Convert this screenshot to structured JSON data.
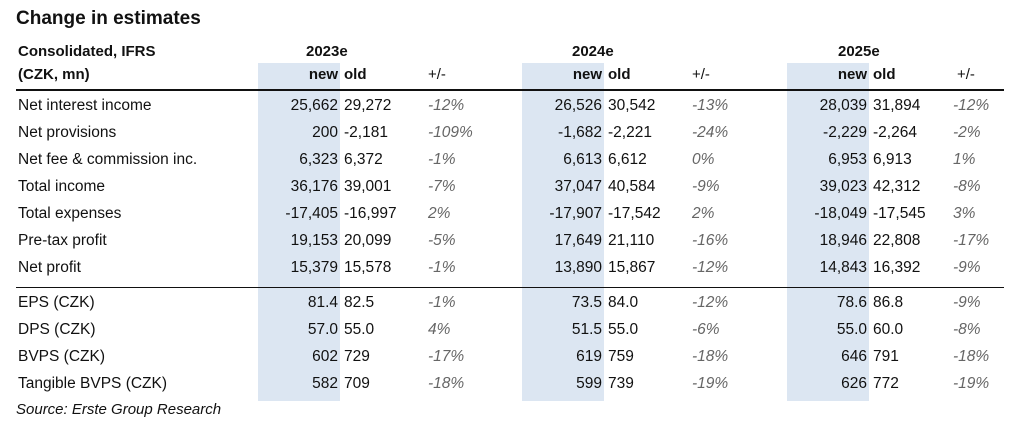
{
  "title": "Change in estimates",
  "header": {
    "line1": "Consolidated, IFRS",
    "line2": "(CZK, mn)",
    "years": [
      "2023e",
      "2024e",
      "2025e"
    ],
    "col_new": "new",
    "col_old": "old",
    "col_change": "+/-"
  },
  "rows": [
    {
      "label": "Net interest income",
      "values": [
        [
          "25,662",
          "29,272",
          "-12%"
        ],
        [
          "26,526",
          "30,542",
          "-13%"
        ],
        [
          "28,039",
          "31,894",
          "-12%"
        ]
      ]
    },
    {
      "label": "Net provisions",
      "values": [
        [
          "200",
          "-2,181",
          "-109%"
        ],
        [
          "-1,682",
          "-2,221",
          "-24%"
        ],
        [
          "-2,229",
          "-2,264",
          "-2%"
        ]
      ]
    },
    {
      "label": "Net fee & commission inc.",
      "values": [
        [
          "6,323",
          "6,372",
          "-1%"
        ],
        [
          "6,613",
          "6,612",
          "0%"
        ],
        [
          "6,953",
          "6,913",
          "1%"
        ]
      ]
    },
    {
      "label": "Total income",
      "values": [
        [
          "36,176",
          "39,001",
          "-7%"
        ],
        [
          "37,047",
          "40,584",
          "-9%"
        ],
        [
          "39,023",
          "42,312",
          "-8%"
        ]
      ]
    },
    {
      "label": "Total expenses",
      "values": [
        [
          "-17,405",
          "-16,997",
          "2%"
        ],
        [
          "-17,907",
          "-17,542",
          "2%"
        ],
        [
          "-18,049",
          "-17,545",
          "3%"
        ]
      ]
    },
    {
      "label": "Pre-tax profit",
      "values": [
        [
          "19,153",
          "20,099",
          "-5%"
        ],
        [
          "17,649",
          "21,110",
          "-16%"
        ],
        [
          "18,946",
          "22,808",
          "-17%"
        ]
      ]
    },
    {
      "label": "Net profit",
      "values": [
        [
          "15,379",
          "15,578",
          "-1%"
        ],
        [
          "13,890",
          "15,867",
          "-12%"
        ],
        [
          "14,843",
          "16,392",
          "-9%"
        ]
      ]
    },
    {
      "label": "EPS (CZK)",
      "values": [
        [
          "81.4",
          "82.5",
          "-1%"
        ],
        [
          "73.5",
          "84.0",
          "-12%"
        ],
        [
          "78.6",
          "86.8",
          "-9%"
        ]
      ]
    },
    {
      "label": "DPS (CZK)",
      "values": [
        [
          "57.0",
          "55.0",
          "4%"
        ],
        [
          "51.5",
          "55.0",
          "-6%"
        ],
        [
          "55.0",
          "60.0",
          "-8%"
        ]
      ]
    },
    {
      "label": "BVPS (CZK)",
      "values": [
        [
          "602",
          "729",
          "-17%"
        ],
        [
          "619",
          "759",
          "-18%"
        ],
        [
          "646",
          "791",
          "-18%"
        ]
      ]
    },
    {
      "label": "Tangible BVPS (CZK)",
      "values": [
        [
          "582",
          "709",
          "-18%"
        ],
        [
          "599",
          "739",
          "-19%"
        ],
        [
          "626",
          "772",
          "-19%"
        ]
      ]
    }
  ],
  "source": "Source: Erste Group Research",
  "colors": {
    "shade": "#dce6f2",
    "rule": "#111111",
    "pct": "#666666"
  }
}
